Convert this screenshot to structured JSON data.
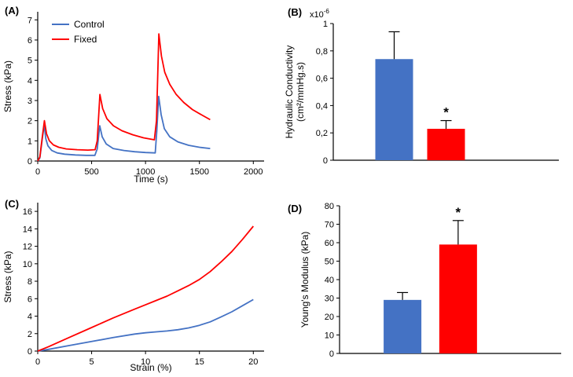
{
  "figure": {
    "panel_labels": {
      "a": "(A)",
      "b": "(B)",
      "c": "(C)",
      "d": "(D)"
    }
  },
  "colors": {
    "control": "#4472C4",
    "fixed": "#FF0000",
    "axis": "#000000"
  },
  "chart_data": [
    {
      "id": "panel-a",
      "type": "line",
      "xlabel": "Time (s)",
      "ylabel": "Stress (kPa)",
      "xlim": [
        0,
        2100
      ],
      "ylim": [
        0,
        7.4
      ],
      "xticks": [
        0,
        500,
        1000,
        1500,
        2000
      ],
      "yticks": [
        0,
        1,
        2,
        3,
        4,
        5,
        6,
        7
      ],
      "legend": true,
      "series": [
        {
          "name": "Control",
          "color_key": "control",
          "points": [
            [
              0,
              0
            ],
            [
              20,
              0.15
            ],
            [
              40,
              1.0
            ],
            [
              60,
              1.8
            ],
            [
              75,
              1.1
            ],
            [
              95,
              0.75
            ],
            [
              130,
              0.52
            ],
            [
              180,
              0.4
            ],
            [
              250,
              0.34
            ],
            [
              350,
              0.3
            ],
            [
              450,
              0.28
            ],
            [
              530,
              0.28
            ],
            [
              552,
              0.6
            ],
            [
              575,
              1.75
            ],
            [
              598,
              1.2
            ],
            [
              635,
              0.85
            ],
            [
              700,
              0.62
            ],
            [
              800,
              0.52
            ],
            [
              900,
              0.46
            ],
            [
              1000,
              0.42
            ],
            [
              1090,
              0.4
            ],
            [
              1105,
              1.5
            ],
            [
              1122,
              3.2
            ],
            [
              1145,
              2.3
            ],
            [
              1175,
              1.6
            ],
            [
              1225,
              1.2
            ],
            [
              1300,
              0.95
            ],
            [
              1400,
              0.78
            ],
            [
              1500,
              0.68
            ],
            [
              1600,
              0.62
            ]
          ]
        },
        {
          "name": "Fixed",
          "color_key": "fixed",
          "points": [
            [
              0,
              0
            ],
            [
              20,
              0.2
            ],
            [
              40,
              1.1
            ],
            [
              62,
              2.0
            ],
            [
              82,
              1.35
            ],
            [
              108,
              1.0
            ],
            [
              145,
              0.8
            ],
            [
              195,
              0.68
            ],
            [
              265,
              0.6
            ],
            [
              365,
              0.56
            ],
            [
              465,
              0.54
            ],
            [
              532,
              0.56
            ],
            [
              552,
              1.0
            ],
            [
              577,
              3.3
            ],
            [
              602,
              2.6
            ],
            [
              642,
              2.1
            ],
            [
              702,
              1.75
            ],
            [
              782,
              1.5
            ],
            [
              882,
              1.3
            ],
            [
              982,
              1.15
            ],
            [
              1082,
              1.05
            ],
            [
              1102,
              2.0
            ],
            [
              1124,
              6.3
            ],
            [
              1148,
              5.2
            ],
            [
              1178,
              4.4
            ],
            [
              1225,
              3.8
            ],
            [
              1285,
              3.3
            ],
            [
              1355,
              2.9
            ],
            [
              1435,
              2.55
            ],
            [
              1515,
              2.3
            ],
            [
              1600,
              2.05
            ]
          ]
        }
      ]
    },
    {
      "id": "panel-b",
      "type": "bar",
      "ylabel_lines": [
        "Hydraulic Conductivity",
        "(cm²/mmHg.s)"
      ],
      "exponent": {
        "base": "x10",
        "power": "-6"
      },
      "ylim": [
        0,
        1.0
      ],
      "yticks": [
        0,
        0.2,
        0.4,
        0.6,
        0.8,
        1
      ],
      "ytick_labels": [
        "0",
        "0,2",
        "0,4",
        "0,6",
        "0,8",
        "1"
      ],
      "bars": [
        {
          "name": "Control",
          "value": 0.74,
          "error": 0.2,
          "color_key": "control",
          "star": false
        },
        {
          "name": "Fixed",
          "value": 0.23,
          "error": 0.06,
          "color_key": "fixed",
          "star": true
        }
      ]
    },
    {
      "id": "panel-c",
      "type": "line",
      "xlabel": "Strain (%)",
      "ylabel": "Stress (kPa)",
      "xlim": [
        0,
        21
      ],
      "ylim": [
        0,
        17
      ],
      "xticks": [
        0,
        5,
        10,
        15,
        20
      ],
      "yticks": [
        0,
        2,
        4,
        6,
        8,
        10,
        12,
        14,
        16
      ],
      "legend": false,
      "series": [
        {
          "name": "Control",
          "color_key": "control",
          "points": [
            [
              0,
              0
            ],
            [
              1,
              0.2
            ],
            [
              3,
              0.65
            ],
            [
              5,
              1.1
            ],
            [
              7,
              1.55
            ],
            [
              9,
              1.95
            ],
            [
              10,
              2.1
            ],
            [
              11,
              2.2
            ],
            [
              12,
              2.3
            ],
            [
              13,
              2.45
            ],
            [
              14,
              2.65
            ],
            [
              15,
              2.95
            ],
            [
              16,
              3.35
            ],
            [
              17,
              3.9
            ],
            [
              18,
              4.5
            ],
            [
              19,
              5.2
            ],
            [
              20,
              5.9
            ]
          ]
        },
        {
          "name": "Fixed",
          "color_key": "fixed",
          "points": [
            [
              0,
              0
            ],
            [
              1,
              0.5
            ],
            [
              3,
              1.6
            ],
            [
              5,
              2.7
            ],
            [
              7,
              3.8
            ],
            [
              9,
              4.8
            ],
            [
              10,
              5.3
            ],
            [
              11,
              5.8
            ],
            [
              12,
              6.3
            ],
            [
              13,
              6.9
            ],
            [
              14,
              7.5
            ],
            [
              15,
              8.2
            ],
            [
              16,
              9.1
            ],
            [
              17,
              10.2
            ],
            [
              18,
              11.4
            ],
            [
              19,
              12.8
            ],
            [
              20,
              14.3
            ]
          ]
        }
      ]
    },
    {
      "id": "panel-d",
      "type": "bar",
      "ylabel_lines": [
        "Young's Modulus (kPa)"
      ],
      "ylim": [
        0,
        80
      ],
      "yticks": [
        0,
        10,
        20,
        30,
        40,
        50,
        60,
        70,
        80
      ],
      "bars": [
        {
          "name": "Control",
          "value": 29,
          "error": 4,
          "color_key": "control",
          "star": false
        },
        {
          "name": "Fixed",
          "value": 59,
          "error": 13,
          "color_key": "fixed",
          "star": true
        }
      ]
    }
  ]
}
